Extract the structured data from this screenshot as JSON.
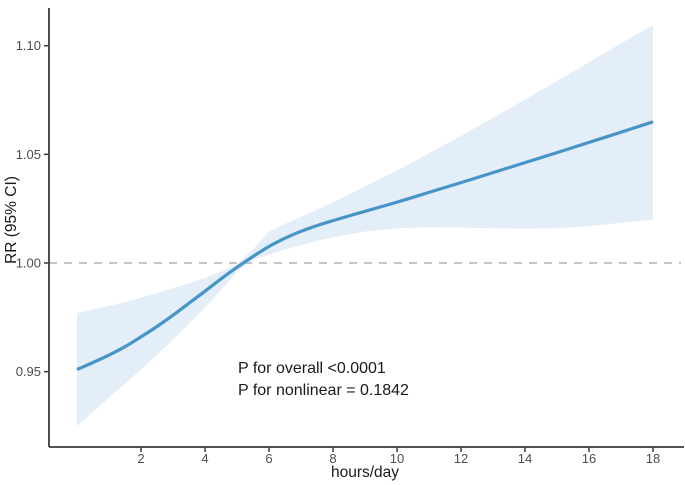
{
  "chart_data": {
    "type": "line",
    "title": "",
    "xlabel": "hours/day",
    "ylabel": "RR (95% CI)",
    "x_ticks": [
      2,
      4,
      6,
      8,
      10,
      12,
      14,
      16,
      18
    ],
    "y_ticks": [
      0.95,
      1.0,
      1.05,
      1.1
    ],
    "x_domain": [
      0,
      18
    ],
    "y_domain": [
      0.915,
      1.118
    ],
    "reference_line_y": 1.0,
    "grid": "off",
    "legend_position": "none",
    "x": [
      0,
      0.5,
      1,
      1.5,
      2,
      2.5,
      3,
      3.5,
      4,
      4.5,
      5,
      5.5,
      6,
      6.5,
      7,
      7.5,
      8,
      9,
      10,
      11,
      12,
      13,
      14,
      15,
      16,
      17,
      18
    ],
    "series": [
      {
        "name": "estimate",
        "role": "line",
        "values": [
          0.951,
          0.9542,
          0.9576,
          0.9615,
          0.966,
          0.9708,
          0.976,
          0.9815,
          0.987,
          0.9927,
          0.998,
          1.003,
          1.0076,
          1.0114,
          1.0146,
          1.0172,
          1.0195,
          1.0238,
          1.028,
          1.0325,
          1.037,
          1.0416,
          1.0462,
          1.0508,
          1.0555,
          1.0602,
          1.065
        ]
      },
      {
        "name": "lower_95ci",
        "role": "band-lower",
        "values": [
          0.925,
          0.9315,
          0.938,
          0.9445,
          0.951,
          0.9578,
          0.9648,
          0.972,
          0.9795,
          0.9875,
          0.9958,
          1.0015,
          1.0038,
          1.0062,
          1.0082,
          1.0102,
          1.0118,
          1.0145,
          1.016,
          1.0164,
          1.0163,
          1.016,
          1.0158,
          1.016,
          1.017,
          1.0185,
          1.02
        ]
      },
      {
        "name": "upper_95ci",
        "role": "band-upper",
        "values": [
          0.977,
          0.9786,
          0.9802,
          0.982,
          0.984,
          0.9862,
          0.9884,
          0.9907,
          0.9932,
          0.996,
          0.9995,
          1.0062,
          1.0145,
          1.018,
          1.0212,
          1.0246,
          1.028,
          1.0352,
          1.0425,
          1.0505,
          1.0585,
          1.0668,
          1.0752,
          1.0838,
          1.0924,
          1.101,
          1.1095
        ]
      }
    ],
    "annotations": [
      {
        "text": "P for overall <0.0001"
      },
      {
        "text": "P for nonlinear = 0.1842"
      }
    ],
    "colors": {
      "line": "#4694c8",
      "band": "#e4eef8",
      "reference": "#bdbdbd",
      "axis": "#3a3a3a",
      "tick_label": "#4d4d4d",
      "text": "#1a1a1a",
      "background": "#ffffff"
    }
  }
}
